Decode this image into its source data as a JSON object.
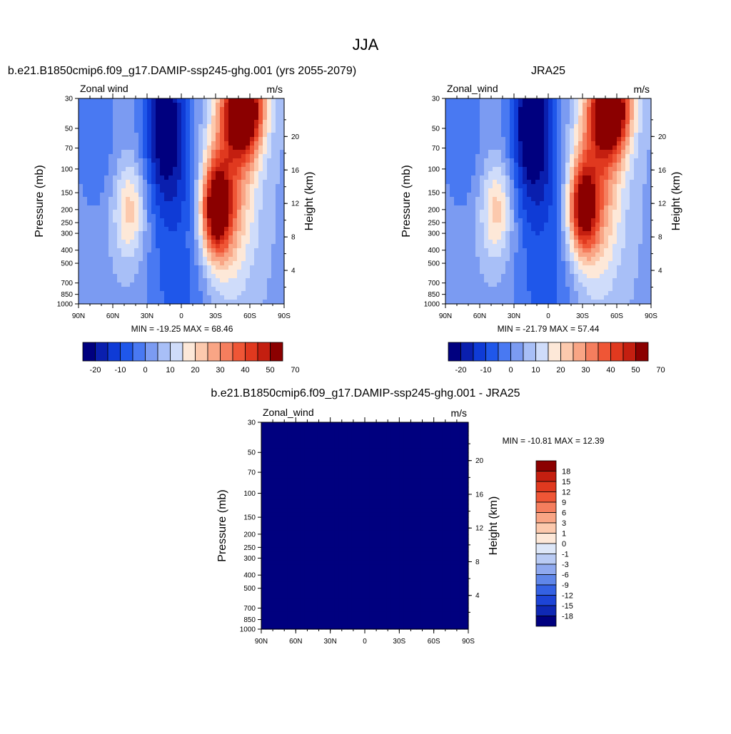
{
  "page_title": "JJA",
  "chart_data": [
    {
      "type": "contour",
      "id": "model",
      "title": "b.e21.B1850cmip6.f09_g17.DAMIP-ssp245-ghg.001 (yrs 2055-2079)",
      "left_label": "Zonal wind",
      "right_label": "m/s",
      "xlabel": "",
      "ylabel": "Pressure (mb)",
      "y2label": "Height (km)",
      "x_ticks": [
        "90N",
        "60N",
        "30N",
        "0",
        "30S",
        "60S",
        "90S"
      ],
      "p_ticks": [
        30,
        50,
        70,
        100,
        150,
        200,
        250,
        300,
        400,
        500,
        700,
        850,
        1000
      ],
      "z_ticks": [
        20,
        16,
        12,
        8,
        4
      ],
      "ylim": [
        1000,
        30
      ],
      "xlim": [
        90,
        -90
      ],
      "stats": "MIN = -19.25  MAX =  68.46",
      "min": -19.25,
      "max": 68.46,
      "colorbar_labels": [
        "-20",
        "-10",
        "0",
        "10",
        "20",
        "30",
        "40",
        "50",
        "70"
      ],
      "levels": [
        -20,
        -15,
        -10,
        -5,
        0,
        5,
        10,
        15,
        20,
        25,
        30,
        35,
        40,
        45,
        50,
        60,
        70
      ]
    },
    {
      "type": "contour",
      "id": "obs",
      "title": "JRA25",
      "left_label": "Zonal_wind",
      "right_label": "m/s",
      "xlabel": "",
      "ylabel": "Pressure (mb)",
      "y2label": "Height (km)",
      "x_ticks": [
        "90N",
        "60N",
        "30N",
        "0",
        "30S",
        "60S",
        "90S"
      ],
      "p_ticks": [
        30,
        50,
        70,
        100,
        150,
        200,
        250,
        300,
        400,
        500,
        700,
        850,
        1000
      ],
      "z_ticks": [
        20,
        16,
        12,
        8,
        4
      ],
      "ylim": [
        1000,
        30
      ],
      "xlim": [
        90,
        -90
      ],
      "stats": "MIN = -21.79  MAX =  57.44",
      "min": -21.79,
      "max": 57.44,
      "colorbar_labels": [
        "-20",
        "-10",
        "0",
        "10",
        "20",
        "30",
        "40",
        "50",
        "70"
      ],
      "levels": [
        -20,
        -15,
        -10,
        -5,
        0,
        5,
        10,
        15,
        20,
        25,
        30,
        35,
        40,
        45,
        50,
        60,
        70
      ]
    },
    {
      "type": "contour",
      "id": "diff",
      "title": "b.e21.B1850cmip6.f09_g17.DAMIP-ssp245-ghg.001 - JRA25",
      "left_label": "Zonal_wind",
      "right_label": "m/s",
      "xlabel": "",
      "ylabel": "Pressure (mb)",
      "y2label": "Height (km)",
      "x_ticks": [
        "90N",
        "60N",
        "30N",
        "0",
        "30S",
        "60S",
        "90S"
      ],
      "p_ticks": [
        30,
        50,
        70,
        100,
        150,
        200,
        250,
        300,
        400,
        500,
        700,
        850,
        1000
      ],
      "z_ticks": [
        20,
        16,
        12,
        8,
        4
      ],
      "ylim": [
        1000,
        30
      ],
      "xlim": [
        90,
        -90
      ],
      "stats": "MIN = -10.81  MAX =  12.39",
      "min": -10.81,
      "max": 12.39,
      "colorbar_labels": [
        "18",
        "15",
        "12",
        "9",
        "6",
        "3",
        "1",
        "0",
        "-1",
        "-3",
        "-6",
        "-9",
        "-12",
        "-15",
        "-18"
      ],
      "levels": [
        -18,
        -15,
        -12,
        -9,
        -6,
        -3,
        -1,
        0,
        1,
        3,
        6,
        9,
        12,
        15,
        18
      ]
    }
  ],
  "colors": {
    "full_field_palette": [
      "#00007f",
      "#0a1fae",
      "#0f3bd6",
      "#1f57ea",
      "#4979f2",
      "#7b9bf2",
      "#a8bff7",
      "#cfdcfa",
      "#fde8d8",
      "#fcc9ad",
      "#f9a585",
      "#f57e5e",
      "#ef5636",
      "#e0391f",
      "#c41f10",
      "#8b0000"
    ],
    "diff_palette": [
      "#8b0000",
      "#c41f10",
      "#e0391f",
      "#ef5636",
      "#f57e5e",
      "#f9a585",
      "#fcc9ad",
      "#fde8d8",
      "#dde7f8",
      "#b9cbf4",
      "#8fa9ef",
      "#5f86e9",
      "#3461e3",
      "#1d44d6",
      "#0f28b4",
      "#00007f"
    ]
  }
}
